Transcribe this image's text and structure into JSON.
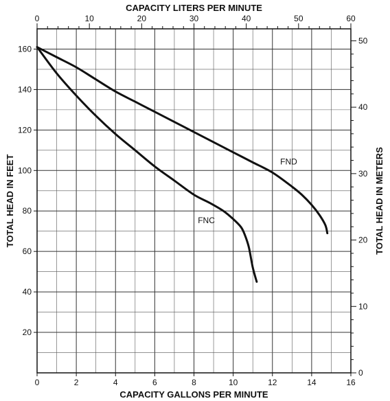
{
  "chart_data": {
    "type": "line",
    "title": "",
    "xlabel": "CAPACITY GALLONS PER MINUTE",
    "ylabel": "TOTAL HEAD IN FEET",
    "x2label": "CAPACITY LITERS PER MINUTE",
    "y2label": "TOTAL HEAD IN METERS",
    "xlim": [
      0,
      16
    ],
    "ylim": [
      0,
      170
    ],
    "x2lim": [
      0,
      60
    ],
    "y2lim": [
      0,
      51.8
    ],
    "xticks": [
      0,
      2,
      4,
      6,
      8,
      10,
      12,
      14,
      16
    ],
    "yticks": [
      20,
      40,
      60,
      80,
      100,
      120,
      140,
      160
    ],
    "x2ticks": [
      0,
      10,
      20,
      30,
      40,
      50,
      60
    ],
    "y2ticks": [
      0,
      10,
      20,
      30,
      40,
      50
    ],
    "grid": true,
    "legend": "none",
    "series": [
      {
        "name": "FND",
        "label_at": [
          12.4,
          103
        ],
        "x": [
          0,
          1,
          2,
          3,
          4,
          5,
          6,
          7,
          8,
          9,
          10,
          11,
          12,
          13,
          13.5,
          14,
          14.4,
          14.7,
          14.8
        ],
        "y": [
          161,
          156,
          151,
          145,
          139,
          134,
          129,
          124,
          119,
          114,
          109,
          104,
          99,
          92,
          88,
          83,
          78,
          73,
          69
        ]
      },
      {
        "name": "FNC",
        "label_at": [
          8.2,
          74
        ],
        "x": [
          0,
          1,
          2,
          3,
          4,
          5,
          6,
          7,
          8,
          8.8,
          9.5,
          10,
          10.4,
          10.6,
          10.8,
          11,
          11.2
        ],
        "y": [
          161,
          148,
          137,
          127,
          118,
          110,
          102,
          95,
          88,
          84,
          80,
          76,
          72,
          68,
          62,
          52,
          45
        ]
      }
    ]
  }
}
